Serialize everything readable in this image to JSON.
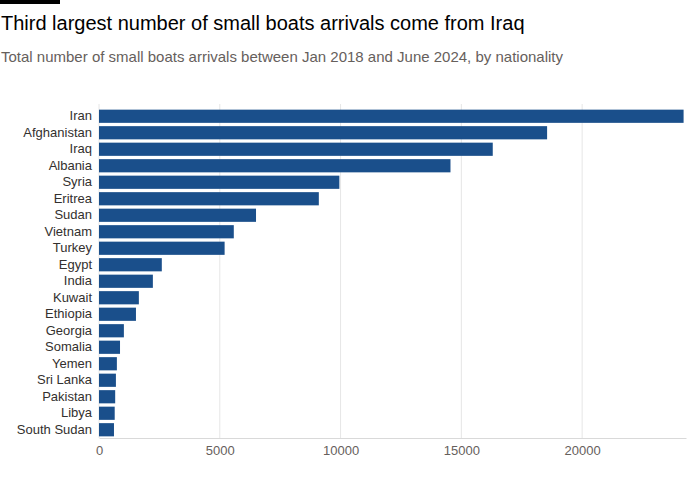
{
  "chart_data": {
    "type": "bar",
    "orientation": "horizontal",
    "title": "Third largest number of small boats arrivals come from Iraq",
    "subtitle": "Total number of small boats arrivals between Jan 2018 and June 2024, by nationality",
    "categories": [
      "Iran",
      "Afghanistan",
      "Iraq",
      "Albania",
      "Syria",
      "Eritrea",
      "Sudan",
      "Vietnam",
      "Turkey",
      "Egypt",
      "India",
      "Kuwait",
      "Ethiopia",
      "Georgia",
      "Somalia",
      "Yemen",
      "Sri Lanka",
      "Pakistan",
      "Libya",
      "South Sudan"
    ],
    "values": [
      24200,
      18550,
      16300,
      14550,
      9950,
      9100,
      6500,
      5580,
      5200,
      2600,
      2230,
      1650,
      1530,
      1030,
      870,
      740,
      700,
      670,
      650,
      620
    ],
    "color": "#1a4f8b",
    "xlim": [
      0,
      24300
    ],
    "xticks": [
      0,
      5000,
      10000,
      15000,
      20000
    ],
    "grid": true
  }
}
